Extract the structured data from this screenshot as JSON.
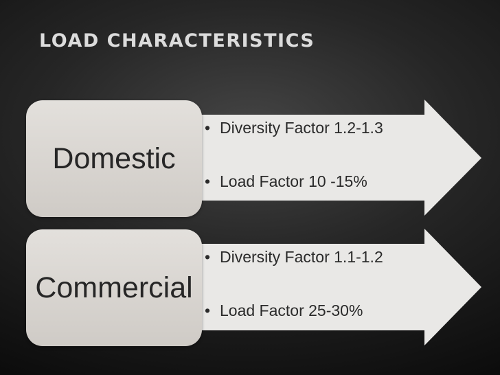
{
  "slide": {
    "title": "LOAD CHARACTERISTICS"
  },
  "rows": [
    {
      "label": "Domestic",
      "bullets": [
        "Diversity Factor 1.2-1.3",
        "Load Factor 10 -15%"
      ]
    },
    {
      "label": "Commercial",
      "bullets": [
        "Diversity Factor 1.1-1.2",
        "Load Factor 25-30%"
      ]
    }
  ],
  "colors": {
    "background": "#262626",
    "title": "#dcdcdc",
    "box_fill": "#d9d6d2",
    "arrow_fill": "#e9e8e6",
    "text": "#2a2a2a"
  },
  "icons": {
    "bullet": "•"
  }
}
